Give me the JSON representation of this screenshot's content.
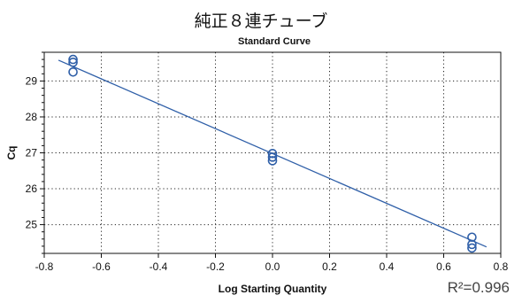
{
  "title": "純正８連チューブ",
  "r2_label": "R²=0.996",
  "chart_data": {
    "type": "scatter",
    "title": "Standard Curve",
    "xlabel": "Log Starting Quantity",
    "ylabel": "Cq",
    "xlim": [
      -0.8,
      0.8
    ],
    "ylim": [
      24.2,
      29.8
    ],
    "x_ticks": [
      -0.8,
      -0.6,
      -0.4,
      -0.2,
      0.0,
      0.2,
      0.4,
      0.6,
      0.8
    ],
    "y_ticks": [
      25,
      26,
      27,
      28,
      29
    ],
    "grid": true,
    "grid_style": "dotted",
    "series": [
      {
        "marker": "open-circle",
        "color": "#2f5fa8",
        "points": [
          {
            "x": -0.699,
            "y": 29.6
          },
          {
            "x": -0.699,
            "y": 29.52
          },
          {
            "x": -0.699,
            "y": 29.25
          },
          {
            "x": 0.0,
            "y": 26.98
          },
          {
            "x": 0.0,
            "y": 26.88
          },
          {
            "x": 0.0,
            "y": 26.78
          },
          {
            "x": 0.699,
            "y": 24.65
          },
          {
            "x": 0.699,
            "y": 24.45
          },
          {
            "x": 0.699,
            "y": 24.35
          }
        ]
      }
    ],
    "fit_line": {
      "color": "#2f5fa8",
      "points": [
        {
          "x": -0.75,
          "y": 29.58
        },
        {
          "x": 0.75,
          "y": 24.38
        }
      ]
    },
    "r2": 0.996
  }
}
